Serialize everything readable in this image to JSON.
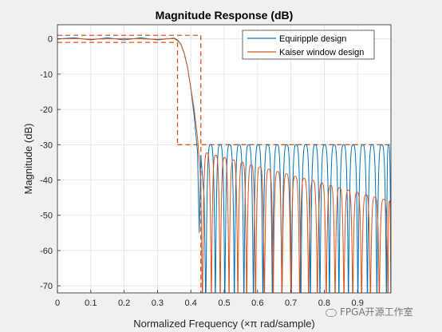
{
  "chart_data": {
    "type": "line",
    "title": "Magnitude Response (dB)",
    "xlabel": "Normalized Frequency (×π rad/sample)",
    "ylabel": "Magnitude (dB)",
    "xlim": [
      0,
      1
    ],
    "ylim": [
      -72,
      4
    ],
    "xticks": [
      "0",
      "0.1",
      "0.2",
      "0.3",
      "0.4",
      "0.5",
      "0.6",
      "0.7",
      "0.8",
      "0.9"
    ],
    "yticks": [
      "0",
      "-10",
      "-20",
      "-30",
      "-40",
      "-50",
      "-60",
      "-70"
    ],
    "grid": true,
    "legend_position": "top-right",
    "series": [
      {
        "name": "Equiripple design",
        "color": "#0072bd",
        "x": [
          0,
          0.05,
          0.1,
          0.15,
          0.2,
          0.25,
          0.3,
          0.35,
          0.36,
          0.37,
          0.38,
          0.39,
          0.4,
          0.41,
          0.42,
          0.425,
          0.43,
          0.44,
          0.45,
          0.5,
          0.6,
          0.7,
          0.8,
          0.9,
          1.0
        ],
        "y": [
          0,
          0.3,
          -0.3,
          0.3,
          -0.3,
          0.3,
          -0.3,
          0.2,
          -0.3,
          -1.5,
          -4,
          -8,
          -14,
          -22,
          -32,
          -55,
          -33,
          -45,
          -30,
          -30,
          -30,
          -30,
          -30,
          -30,
          -30
        ],
        "stopband": {
          "start": 0.445,
          "peak": -30,
          "lobe_width": 0.0285
        }
      },
      {
        "name": "Kaiser window design",
        "color": "#d95319",
        "x": [
          0,
          0.05,
          0.1,
          0.2,
          0.3,
          0.35,
          0.36,
          0.37,
          0.38,
          0.39,
          0.4,
          0.41,
          0.42,
          0.43,
          0.44,
          0.45,
          0.5,
          0.6,
          0.7,
          0.8,
          0.9,
          1.0
        ],
        "y": [
          0,
          0.1,
          -0.1,
          0.1,
          -0.1,
          0.1,
          -0.5,
          -1.5,
          -4,
          -8,
          -14,
          -20,
          -28,
          -40,
          -35,
          -32,
          -35,
          -38,
          -41,
          -43,
          -45,
          -46
        ],
        "stopband": {
          "start": 0.435,
          "peak_start": -32,
          "peak_end": -46,
          "lobe_width": 0.0265
        }
      }
    ],
    "mask": {
      "color": "#d95319",
      "passband": {
        "x": [
          0,
          0.36
        ],
        "upper": 1,
        "lower": -1
      },
      "transition_upper": {
        "x": 0.43,
        "y": [
          1,
          -30
        ]
      },
      "transition_lower": {
        "x": 0.36,
        "y": [
          -1,
          -30
        ]
      },
      "stopband": {
        "x": [
          0.36,
          1
        ],
        "y": -30
      }
    }
  },
  "watermark": "FPGA开源工作室",
  "colors": {
    "axes_bg": "#ffffff",
    "figure_bg": "#f0f0f0",
    "grid": "#e3e3e3"
  }
}
